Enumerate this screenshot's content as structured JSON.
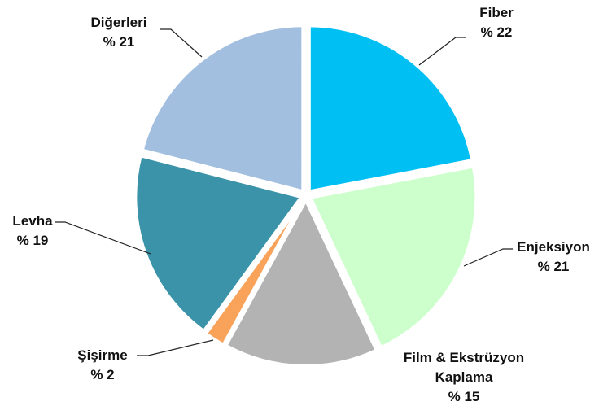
{
  "chart_data": {
    "type": "pie",
    "categories": [
      "Fiber",
      "Enjeksiyon",
      "Film & Ekstrüzyon Kaplama",
      "Şişirme",
      "Levha",
      "Diğerleri"
    ],
    "values": [
      22,
      21,
      15,
      2,
      19,
      21
    ],
    "value_labels": [
      "% 22",
      "% 21",
      "% 15",
      "% 2",
      "% 19",
      "% 21"
    ],
    "colors": [
      "#00bff3",
      "#ccffcc",
      "#b3b3b3",
      "#f9a35a",
      "#3a93a8",
      "#a3bfdf"
    ]
  }
}
